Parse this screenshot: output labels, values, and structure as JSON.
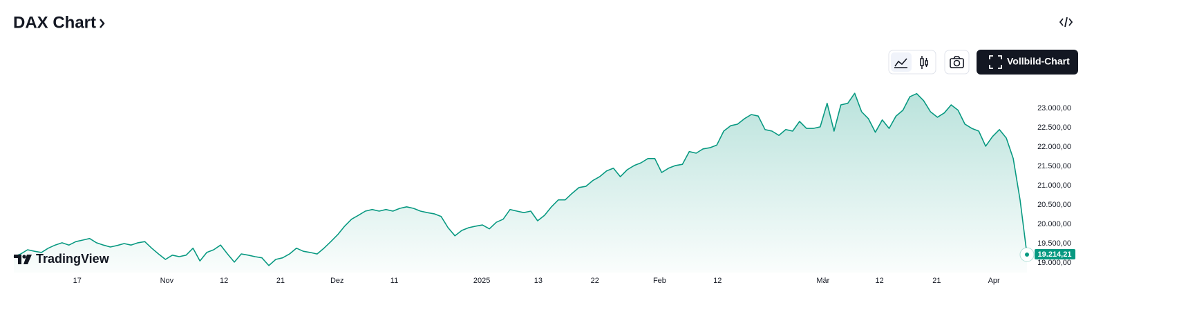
{
  "chart_data": {
    "type": "line",
    "title": "DAX Chart",
    "series": [
      {
        "name": "DAX",
        "color": "#089981",
        "values": [
          19160,
          19230,
          19340,
          19300,
          19270,
          19380,
          19460,
          19520,
          19460,
          19550,
          19590,
          19630,
          19520,
          19460,
          19410,
          19450,
          19500,
          19460,
          19520,
          19550,
          19380,
          19230,
          19090,
          19200,
          19160,
          19200,
          19380,
          19050,
          19270,
          19340,
          19460,
          19230,
          19020,
          19230,
          19200,
          19160,
          19130,
          18930,
          19090,
          19130,
          19230,
          19380,
          19300,
          19270,
          19230,
          19380,
          19550,
          19730,
          19950,
          20130,
          20230,
          20340,
          20380,
          20340,
          20380,
          20340,
          20410,
          20450,
          20410,
          20340,
          20300,
          20270,
          20200,
          19910,
          19700,
          19840,
          19910,
          19950,
          19980,
          19880,
          20050,
          20130,
          20380,
          20340,
          20300,
          20340,
          20090,
          20230,
          20450,
          20630,
          20630,
          20800,
          20950,
          20980,
          21130,
          21230,
          21380,
          21450,
          21230,
          21410,
          21520,
          21590,
          21700,
          21700,
          21340,
          21450,
          21520,
          21550,
          21880,
          21840,
          21950,
          21980,
          22050,
          22410,
          22550,
          22590,
          22730,
          22840,
          22800,
          22450,
          22410,
          22300,
          22450,
          22410,
          22660,
          22480,
          22480,
          22520,
          23130,
          22410,
          23090,
          23130,
          23390,
          22910,
          22730,
          22380,
          22700,
          22480,
          22800,
          22950,
          23300,
          23380,
          23200,
          22910,
          22770,
          22880,
          23090,
          22950,
          22590,
          22480,
          22410,
          22020,
          22270,
          22450,
          22230,
          21700,
          20630,
          19214.21
        ]
      }
    ],
    "current_value": {
      "value": 19214.21,
      "label": "19.214,21"
    },
    "xlim": [
      0,
      147
    ],
    "xticks": [
      {
        "value": 9.2,
        "label": "17"
      },
      {
        "value": 22.2,
        "label": "Nov"
      },
      {
        "value": 30.5,
        "label": "12"
      },
      {
        "value": 38.7,
        "label": "21"
      },
      {
        "value": 46.9,
        "label": "Dez"
      },
      {
        "value": 55.2,
        "label": "11"
      },
      {
        "value": 67.9,
        "label": "2025"
      },
      {
        "value": 76.1,
        "label": "13"
      },
      {
        "value": 84.3,
        "label": "22"
      },
      {
        "value": 93.7,
        "label": "Feb"
      },
      {
        "value": 102.1,
        "label": "12"
      },
      {
        "value": 117.4,
        "label": "Mär"
      },
      {
        "value": 125.6,
        "label": "12"
      },
      {
        "value": 133.9,
        "label": "21"
      },
      {
        "value": 142.2,
        "label": "Apr"
      }
    ],
    "ylim": [
      18750,
      23650
    ],
    "yticks": [
      {
        "value": 19000,
        "label": "19.000,00"
      },
      {
        "value": 19500,
        "label": "19.500,00"
      },
      {
        "value": 20000,
        "label": "20.000,00"
      },
      {
        "value": 20500,
        "label": "20.500,00"
      },
      {
        "value": 21000,
        "label": "21.000,00"
      },
      {
        "value": 21500,
        "label": "21.500,00"
      },
      {
        "value": 22000,
        "label": "22.000,00"
      },
      {
        "value": 22500,
        "label": "22.500,00"
      },
      {
        "value": 23000,
        "label": "23.000,00"
      }
    ],
    "grid": false
  },
  "ui": {
    "fullscreen_button": "Vollbild-Chart",
    "logo": "TradingView"
  }
}
